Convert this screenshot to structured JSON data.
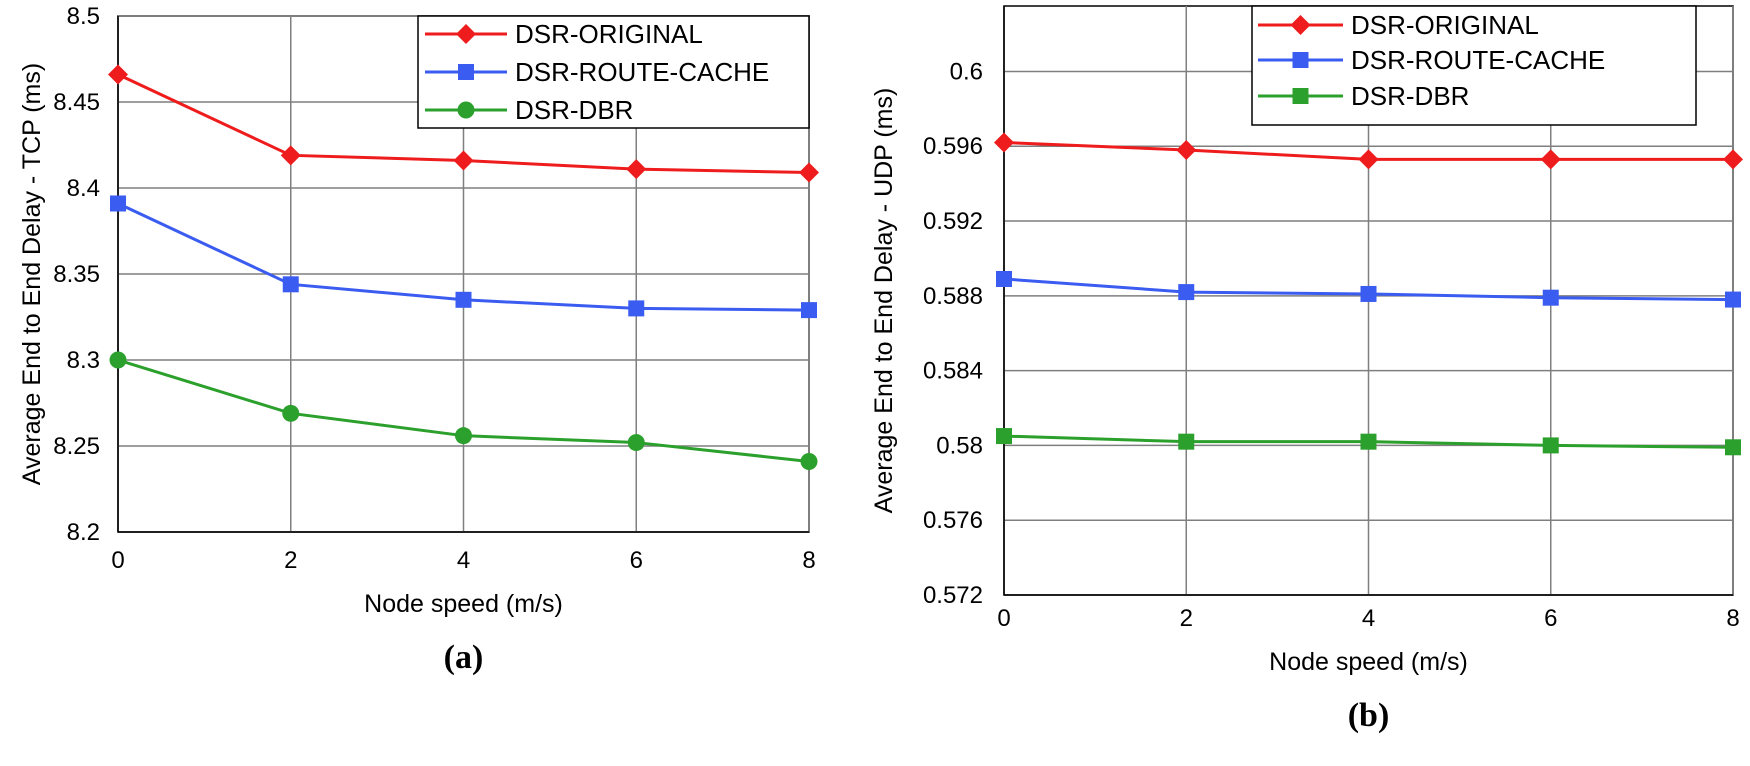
{
  "chart_data": [
    {
      "type": "line",
      "panel_label": "(a)",
      "xlabel": "Node speed (m/s)",
      "ylabel": "Average End to End Delay - TCP (ms)",
      "x": [
        0,
        2,
        4,
        6,
        8
      ],
      "xticks": [
        "0",
        "2",
        "4",
        "6",
        "8"
      ],
      "ylim": [
        8.2,
        8.5
      ],
      "yticks": [
        "8.2",
        "8.25",
        "8.3",
        "8.35",
        "8.4",
        "8.45",
        "8.5"
      ],
      "grid": true,
      "legend_position": "top-right",
      "series": [
        {
          "name": "DSR-ORIGINAL",
          "color": "#ee1c1c",
          "marker": "diamond",
          "values": [
            8.466,
            8.419,
            8.416,
            8.411,
            8.409
          ]
        },
        {
          "name": "DSR-ROUTE-CACHE",
          "color": "#3b5cf0",
          "marker": "square",
          "values": [
            8.391,
            8.344,
            8.335,
            8.33,
            8.329
          ]
        },
        {
          "name": "DSR-DBR",
          "color": "#2ca02c",
          "marker": "circle",
          "values": [
            8.3,
            8.269,
            8.256,
            8.252,
            8.241
          ]
        }
      ]
    },
    {
      "type": "line",
      "panel_label": "(b)",
      "xlabel": "Node speed (m/s)",
      "ylabel": "Average End to End Delay - UDP (ms)",
      "x": [
        0,
        2,
        4,
        6,
        8
      ],
      "xticks": [
        "0",
        "2",
        "4",
        "6",
        "8"
      ],
      "ylim": [
        0.572,
        0.6035
      ],
      "yticks": [
        "0.572",
        "0.576",
        "0.58",
        "0.584",
        "0.588",
        "0.592",
        "0.596",
        "0.6"
      ],
      "grid": true,
      "legend_position": "top-right",
      "series": [
        {
          "name": "DSR-ORIGINAL",
          "color": "#ee1c1c",
          "marker": "diamond",
          "values": [
            0.5962,
            0.5958,
            0.5953,
            0.5953,
            0.5953
          ]
        },
        {
          "name": "DSR-ROUTE-CACHE",
          "color": "#3b5cf0",
          "marker": "square",
          "values": [
            0.5889,
            0.5882,
            0.5881,
            0.5879,
            0.5878
          ]
        },
        {
          "name": "DSR-DBR",
          "color": "#2ca02c",
          "marker": "square",
          "values": [
            0.5805,
            0.5802,
            0.5802,
            0.58,
            0.5799
          ]
        }
      ]
    }
  ]
}
